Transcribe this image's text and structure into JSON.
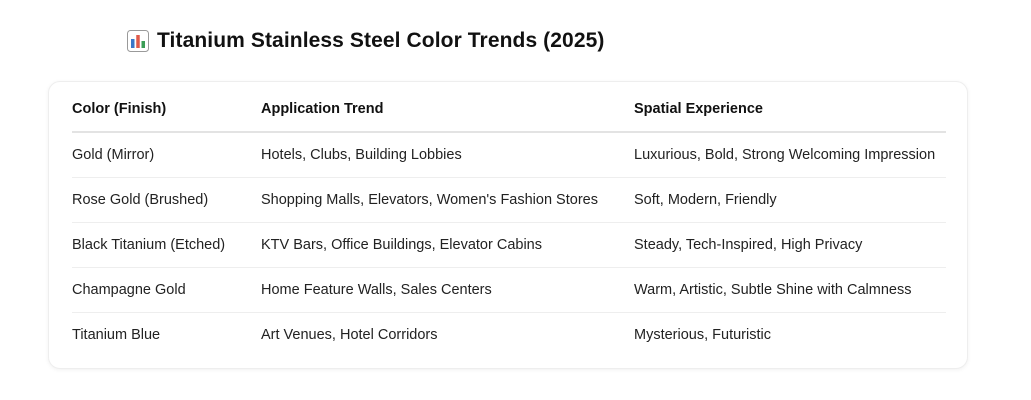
{
  "header": {
    "icon": "bar-chart-icon",
    "title": "Titanium Stainless Steel Color Trends (2025)"
  },
  "table": {
    "columns": [
      "Color (Finish)",
      "Application Trend",
      "Spatial Experience"
    ],
    "rows": [
      [
        "Gold (Mirror)",
        "Hotels, Clubs, Building Lobbies",
        "Luxurious, Bold, Strong Welcoming Impression"
      ],
      [
        "Rose Gold (Brushed)",
        "Shopping Malls, Elevators, Women's Fashion Stores",
        "Soft, Modern, Friendly"
      ],
      [
        "Black Titanium (Etched)",
        "KTV Bars, Office Buildings, Elevator Cabins",
        "Steady, Tech-Inspired, High Privacy"
      ],
      [
        "Champagne Gold",
        "Home Feature Walls, Sales Centers",
        "Warm, Artistic, Subtle Shine with Calmness"
      ],
      [
        "Titanium Blue",
        "Art Venues, Hotel Corridors",
        "Mysterious, Futuristic"
      ]
    ]
  }
}
